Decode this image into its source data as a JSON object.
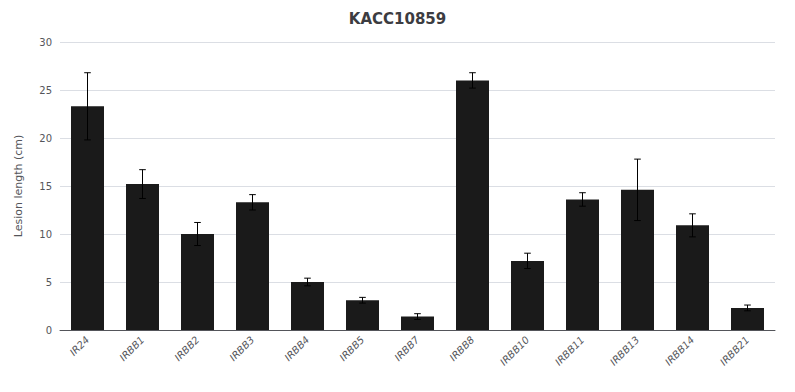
{
  "chart_data": {
    "type": "bar",
    "title": "KACC10859",
    "ylabel": "Lesion length (cm)",
    "categories": [
      "IR24",
      "IRBB1",
      "IRBB2",
      "IRBB3",
      "IRBB4",
      "IRBB5",
      "IRBB7",
      "IRBB8",
      "IRBB10",
      "IRBB11",
      "IRBB13",
      "IRBB14",
      "IRBB21"
    ],
    "values": [
      23.3,
      15.2,
      10.0,
      13.3,
      5.0,
      3.1,
      1.4,
      26.0,
      7.2,
      13.6,
      14.6,
      10.9,
      2.3
    ],
    "errors": [
      3.5,
      1.5,
      1.2,
      0.8,
      0.4,
      0.3,
      0.3,
      0.8,
      0.8,
      0.7,
      3.2,
      1.2,
      0.3
    ],
    "color": "#1a1a1a",
    "ylim": [
      0,
      30
    ],
    "yticks": [
      0,
      5,
      10,
      15,
      20,
      25,
      30
    ],
    "grid": true
  }
}
